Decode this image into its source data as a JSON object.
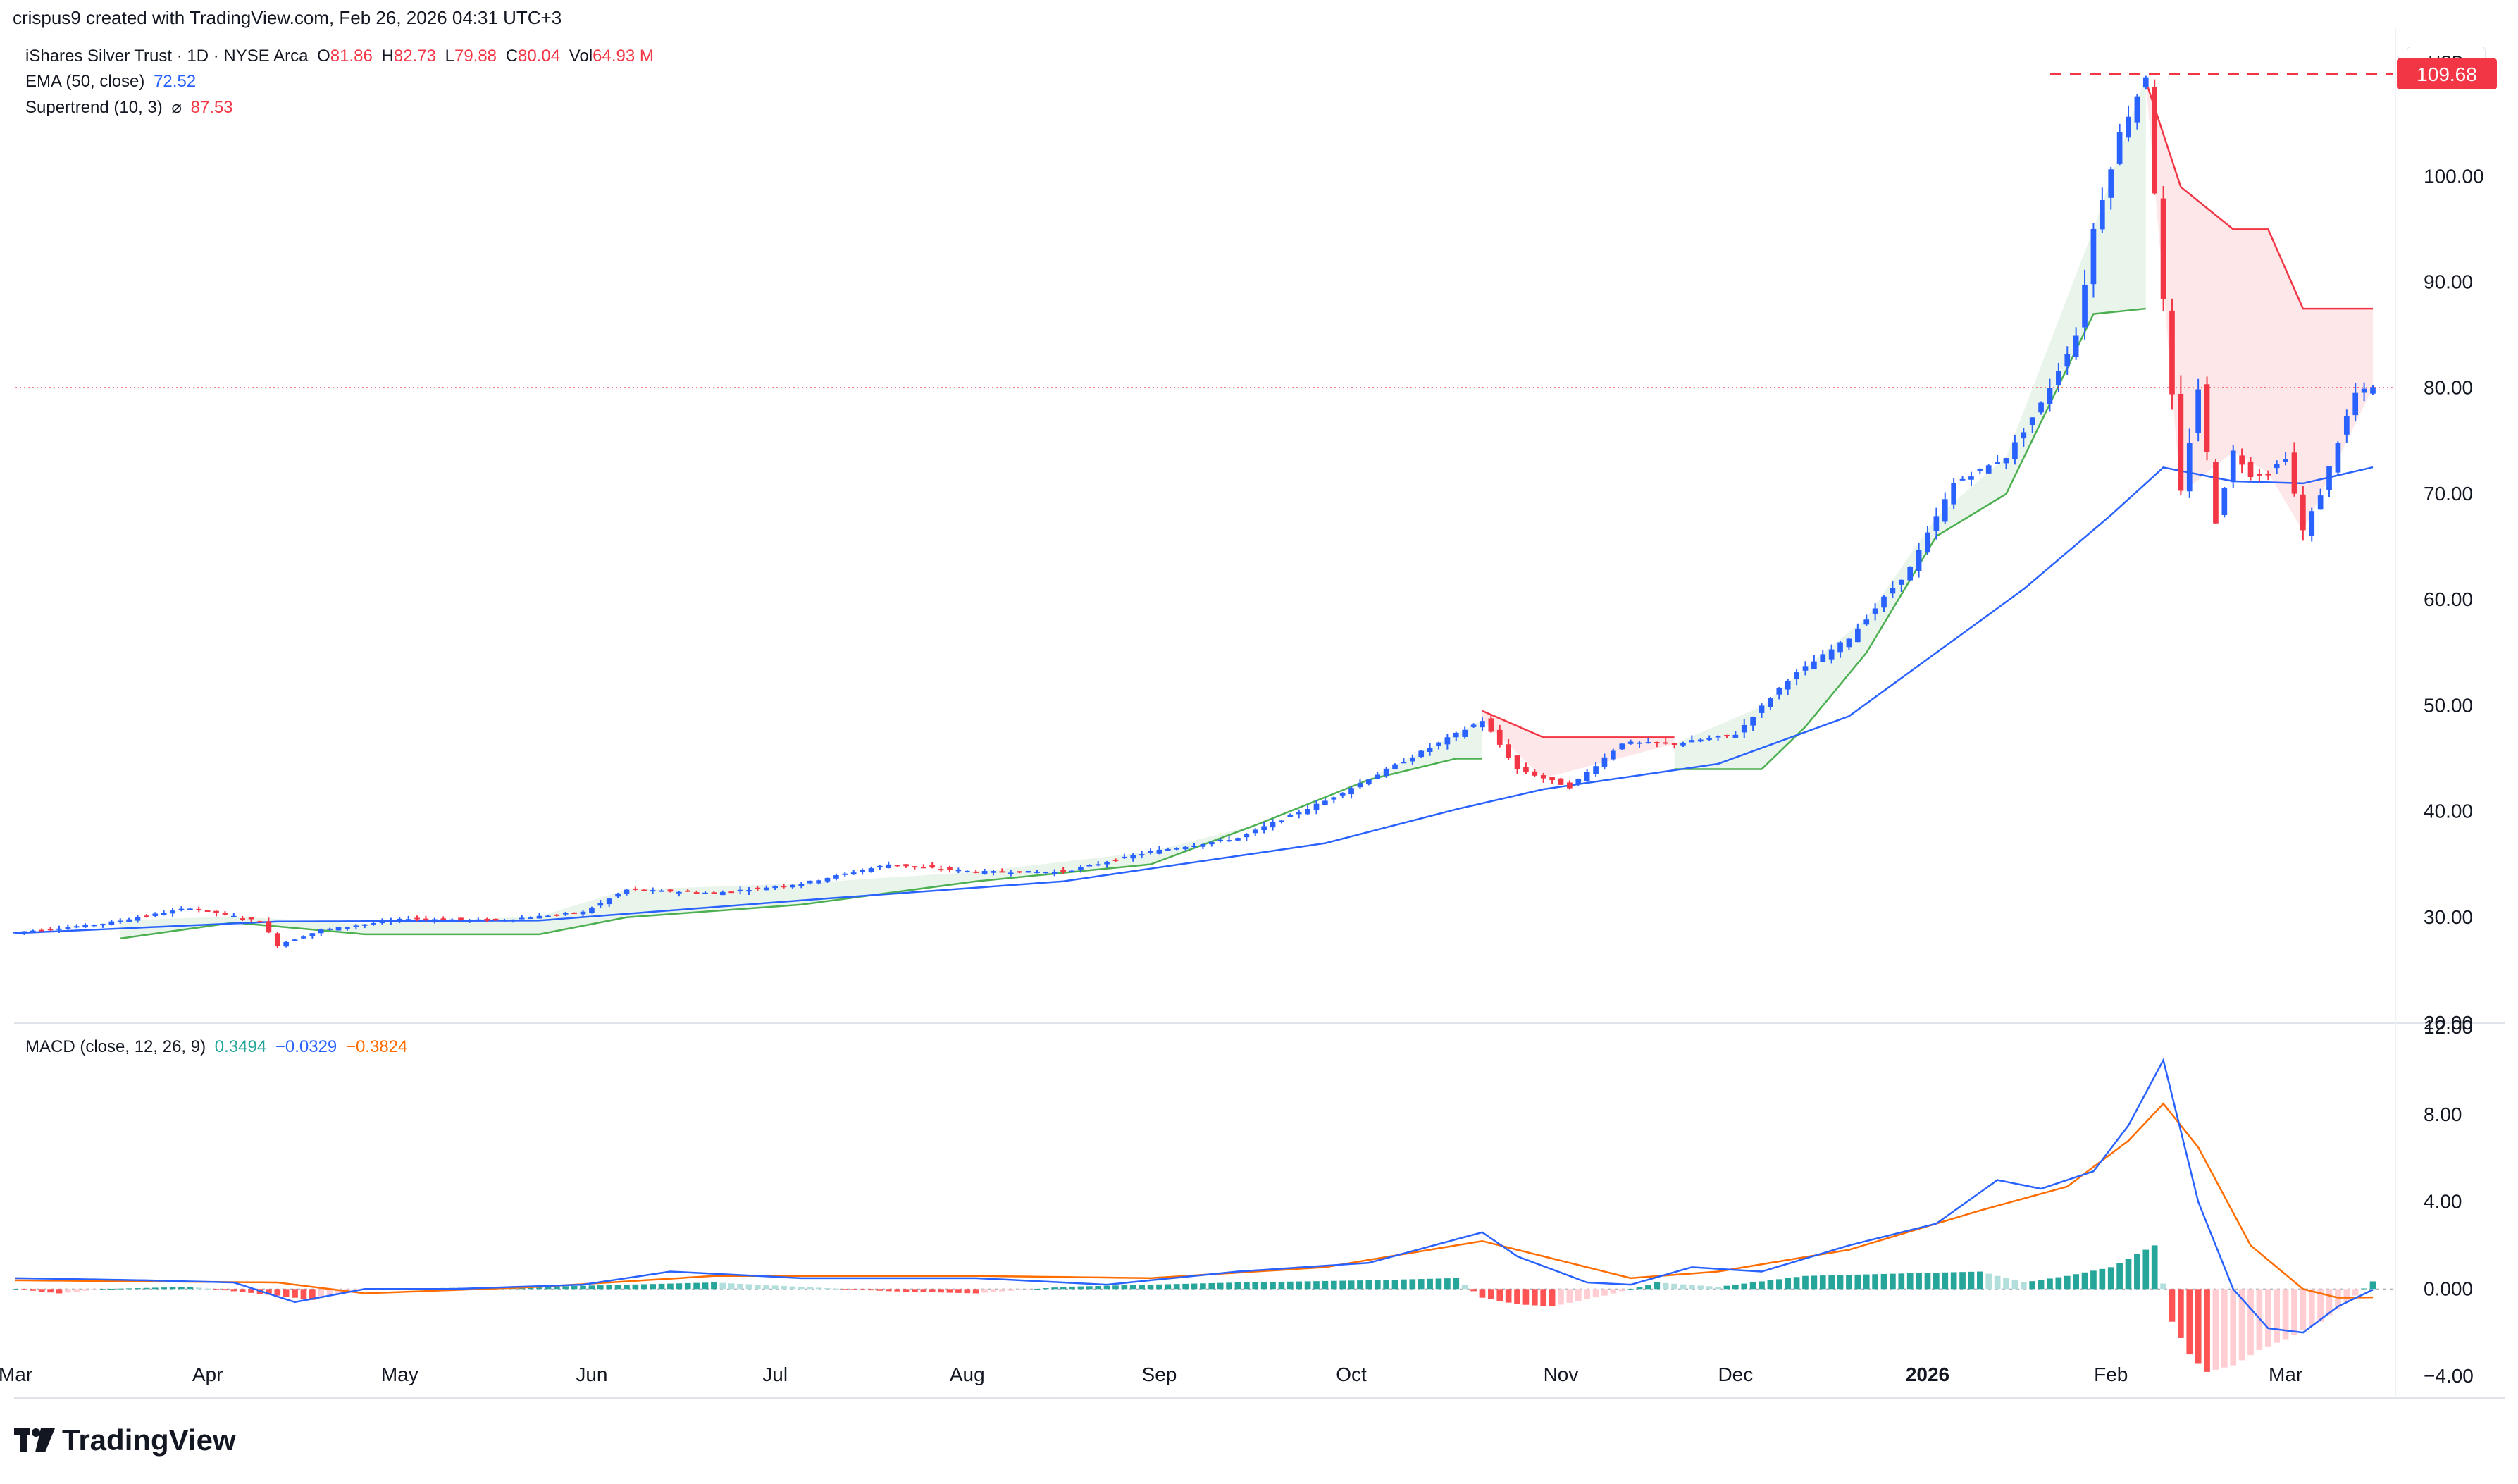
{
  "header": {
    "text": "crispus9 created with TradingView.com, Feb 26, 2026 04:31 UTC+3"
  },
  "legend": {
    "symbol": "iShares Silver Trust · 1D · NYSE Arca",
    "o_label": "O",
    "o": "81.86",
    "h_label": "H",
    "h": "82.73",
    "l_label": "L",
    "l": "79.88",
    "c_label": "C",
    "c": "80.04",
    "vol_label": "Vol",
    "vol": "64.93 M",
    "ema": "EMA (50, close)",
    "ema_val": "72.52",
    "st": "Supertrend (10, 3)",
    "st_icon": "⌀",
    "st_val": "87.53",
    "macd": "MACD (close, 12, 26, 9)",
    "macd_hist": "0.3494",
    "macd_line": "−0.0329",
    "macd_signal": "−0.3824"
  },
  "currency": "USD",
  "brand": "TradingView",
  "colors": {
    "up": "#2962ff",
    "down": "#f23645",
    "ema": "#2962ff",
    "st_up": "#4caf50",
    "st_down": "#f23645",
    "macd_line": "#2962ff",
    "signal": "#ff6d00",
    "hist_up": "#26a69a",
    "hist_down": "#ff5252"
  },
  "chart_data": [
    {
      "type": "candlestick",
      "title": "iShares Silver Trust · 1D · NYSE Arca",
      "ylim": [
        20,
        114
      ],
      "yticks": [
        "100.00",
        "90.00",
        "80.00",
        "70.00",
        "60.00",
        "50.00",
        "40.00",
        "30.00",
        "20.00"
      ],
      "ytick_values": [
        100,
        90,
        80,
        70,
        60,
        50,
        40,
        30,
        20
      ],
      "x_labels": [
        "Mar",
        "Apr",
        "May",
        "Jun",
        "Jul",
        "Aug",
        "Sep",
        "Oct",
        "Nov",
        "Dec",
        "2026",
        "Feb",
        "Mar"
      ],
      "x_label_days": [
        0,
        22,
        44,
        66,
        87,
        109,
        131,
        153,
        177,
        197,
        219,
        240,
        260
      ],
      "days_total": 258,
      "high_line_label": "109.68",
      "high_line": 109.68,
      "last_price": 80.04,
      "price_path": [
        [
          0,
          28.6
        ],
        [
          10,
          29.4
        ],
        [
          20,
          30.9
        ],
        [
          28,
          29.6
        ],
        [
          30,
          27.4
        ],
        [
          35,
          28.8
        ],
        [
          45,
          29.9
        ],
        [
          55,
          29.7
        ],
        [
          65,
          30.5
        ],
        [
          70,
          32.6
        ],
        [
          80,
          32.3
        ],
        [
          90,
          33.2
        ],
        [
          100,
          35.0
        ],
        [
          110,
          34.3
        ],
        [
          120,
          34.3
        ],
        [
          130,
          36.2
        ],
        [
          140,
          37.5
        ],
        [
          150,
          41.0
        ],
        [
          160,
          45.2
        ],
        [
          168,
          48.6
        ],
        [
          172,
          44.0
        ],
        [
          178,
          42.3
        ],
        [
          184,
          46.5
        ],
        [
          190,
          46.4
        ],
        [
          197,
          47.3
        ],
        [
          203,
          52.5
        ],
        [
          210,
          56.4
        ],
        [
          217,
          63.0
        ],
        [
          222,
          71.0
        ],
        [
          228,
          73.5
        ],
        [
          232,
          78.5
        ],
        [
          236,
          85.0
        ],
        [
          238,
          95.0
        ],
        [
          241,
          104.0
        ],
        [
          244,
          109.5
        ],
        [
          246,
          88.0
        ],
        [
          248,
          70.0
        ],
        [
          250,
          80.0
        ],
        [
          252,
          67.5
        ],
        [
          254,
          74.0
        ],
        [
          256,
          71.8
        ],
        [
          258,
          72.0
        ],
        [
          260,
          73.5
        ],
        [
          262,
          66.5
        ],
        [
          264,
          70.0
        ],
        [
          266,
          75.0
        ],
        [
          268,
          79.5
        ],
        [
          270,
          80.04
        ]
      ],
      "ema_path": [
        [
          0,
          28.5
        ],
        [
          30,
          29.6
        ],
        [
          60,
          29.7
        ],
        [
          90,
          31.6
        ],
        [
          120,
          33.4
        ],
        [
          150,
          37.0
        ],
        [
          165,
          40.2
        ],
        [
          175,
          42.1
        ],
        [
          195,
          44.5
        ],
        [
          210,
          49.0
        ],
        [
          220,
          55.0
        ],
        [
          230,
          61.0
        ],
        [
          240,
          68.0
        ],
        [
          246,
          72.5
        ],
        [
          254,
          71.2
        ],
        [
          262,
          71.0
        ],
        [
          270,
          72.52
        ]
      ],
      "supertrend": [
        {
          "dir": "up",
          "pts": [
            [
              12,
              28.0
            ],
            [
              25,
              29.5
            ],
            [
              40,
              28.4
            ],
            [
              60,
              28.4
            ],
            [
              70,
              30.0
            ],
            [
              90,
              31.2
            ],
            [
              110,
              33.4
            ],
            [
              130,
              35.0
            ],
            [
              142,
              38.7
            ],
            [
              155,
              43.0
            ],
            [
              165,
              45.0
            ],
            [
              168,
              45.0
            ]
          ]
        },
        {
          "dir": "down",
          "pts": [
            [
              168,
              49.5
            ],
            [
              175,
              47.0
            ],
            [
              190,
              47.0
            ]
          ]
        },
        {
          "dir": "up",
          "pts": [
            [
              190,
              44.0
            ],
            [
              200,
              44.0
            ],
            [
              205,
              48.0
            ],
            [
              212,
              55.0
            ],
            [
              220,
              66.0
            ],
            [
              228,
              70.0
            ],
            [
              238,
              87.0
            ],
            [
              244,
              87.5
            ]
          ]
        },
        {
          "dir": "down",
          "pts": [
            [
              244,
              109.0
            ],
            [
              248,
              99.0
            ],
            [
              254,
              95.0
            ],
            [
              258,
              95.0
            ],
            [
              262,
              87.5
            ],
            [
              270,
              87.5
            ]
          ]
        }
      ]
    },
    {
      "type": "macd",
      "title": "MACD (close, 12, 26, 9)",
      "ylim": [
        -5,
        12
      ],
      "yticks": [
        "12.00",
        "8.00",
        "4.00",
        "0.000",
        "−4.00"
      ],
      "ytick_values": [
        12,
        8,
        4,
        0,
        -4
      ],
      "macd_path": [
        [
          0,
          0.5
        ],
        [
          15,
          0.4
        ],
        [
          25,
          0.3
        ],
        [
          32,
          -0.6
        ],
        [
          40,
          0.0
        ],
        [
          50,
          0.0
        ],
        [
          65,
          0.2
        ],
        [
          75,
          0.8
        ],
        [
          90,
          0.5
        ],
        [
          110,
          0.5
        ],
        [
          125,
          0.2
        ],
        [
          140,
          0.8
        ],
        [
          155,
          1.2
        ],
        [
          168,
          2.6
        ],
        [
          172,
          1.5
        ],
        [
          180,
          0.3
        ],
        [
          185,
          0.2
        ],
        [
          192,
          1.0
        ],
        [
          200,
          0.8
        ],
        [
          210,
          2.0
        ],
        [
          220,
          3.0
        ],
        [
          227,
          5.0
        ],
        [
          232,
          4.6
        ],
        [
          238,
          5.4
        ],
        [
          242,
          7.5
        ],
        [
          246,
          10.5
        ],
        [
          250,
          4.0
        ],
        [
          254,
          0.0
        ],
        [
          258,
          -1.8
        ],
        [
          262,
          -2.0
        ],
        [
          266,
          -0.8
        ],
        [
          270,
          -0.0329
        ]
      ],
      "signal_path": [
        [
          0,
          0.4
        ],
        [
          30,
          0.3
        ],
        [
          40,
          -0.2
        ],
        [
          60,
          0.1
        ],
        [
          80,
          0.6
        ],
        [
          110,
          0.6
        ],
        [
          130,
          0.5
        ],
        [
          150,
          1.0
        ],
        [
          168,
          2.2
        ],
        [
          175,
          1.5
        ],
        [
          185,
          0.5
        ],
        [
          195,
          0.8
        ],
        [
          210,
          1.8
        ],
        [
          225,
          3.6
        ],
        [
          235,
          4.7
        ],
        [
          242,
          6.8
        ],
        [
          246,
          8.5
        ],
        [
          250,
          6.5
        ],
        [
          256,
          2.0
        ],
        [
          262,
          0.0
        ],
        [
          266,
          -0.4
        ],
        [
          270,
          -0.3824
        ]
      ],
      "histogram": [
        [
          0,
          0.0
        ],
        [
          5,
          -0.2
        ],
        [
          10,
          0.0
        ],
        [
          20,
          0.1
        ],
        [
          30,
          -0.3
        ],
        [
          34,
          -0.5
        ],
        [
          40,
          0.0
        ],
        [
          60,
          0.1
        ],
        [
          70,
          0.2
        ],
        [
          80,
          0.3
        ],
        [
          100,
          -0.1
        ],
        [
          110,
          -0.2
        ],
        [
          120,
          0.1
        ],
        [
          140,
          0.3
        ],
        [
          155,
          0.4
        ],
        [
          165,
          0.5
        ],
        [
          168,
          -0.4
        ],
        [
          172,
          -0.7
        ],
        [
          176,
          -0.8
        ],
        [
          182,
          -0.3
        ],
        [
          188,
          0.3
        ],
        [
          195,
          0.1
        ],
        [
          205,
          0.6
        ],
        [
          215,
          0.7
        ],
        [
          225,
          0.8
        ],
        [
          230,
          0.3
        ],
        [
          235,
          0.6
        ],
        [
          240,
          1.0
        ],
        [
          245,
          2.0
        ],
        [
          247,
          -1.5
        ],
        [
          249,
          -3.0
        ],
        [
          251,
          -3.8
        ],
        [
          254,
          -3.5
        ],
        [
          257,
          -2.8
        ],
        [
          260,
          -2.3
        ],
        [
          264,
          -1.5
        ],
        [
          268,
          -0.3
        ],
        [
          270,
          0.3494
        ]
      ]
    }
  ]
}
